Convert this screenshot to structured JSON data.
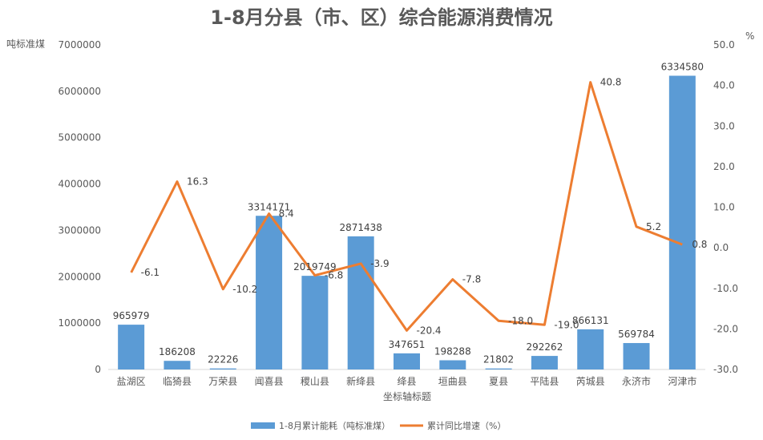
{
  "chart_data": {
    "type": "bar",
    "title": "1-8月分县（市、区）综合能源消费情况",
    "xlabel": "坐标轴标题",
    "ylabel_left": "吨标准煤",
    "ylabel_right": "%",
    "ylim_left": [
      0,
      7000000
    ],
    "ylim_right": [
      -30,
      50
    ],
    "left_ticks": [
      "0",
      "1000000",
      "2000000",
      "3000000",
      "4000000",
      "5000000",
      "6000000",
      "7000000"
    ],
    "right_ticks": [
      "-30.0",
      "-20.0",
      "-10.0",
      "0.0",
      "10.0",
      "20.0",
      "30.0",
      "40.0",
      "50.0"
    ],
    "categories": [
      "盐湖区",
      "临猗县",
      "万荣县",
      "闻喜县",
      "稷山县",
      "新绛县",
      "绛县",
      "垣曲县",
      "夏县",
      "平陆县",
      "芮城县",
      "永济市",
      "河津市"
    ],
    "series": [
      {
        "name": "1-8月累计能耗（吨标准煤）",
        "type": "bar",
        "axis": "left",
        "color": "#5B9BD5",
        "values": [
          965979,
          186208,
          22226,
          3314171,
          2019749,
          2871438,
          347651,
          198288,
          21802,
          292262,
          866131,
          569784,
          6334580
        ],
        "labels": [
          "965979",
          "186208",
          "22226",
          "3314171",
          "2019749",
          "2871438",
          "347651",
          "198288",
          "21802",
          "292262",
          "866131",
          "569784",
          "6334580"
        ]
      },
      {
        "name": "累计同比增速（%）",
        "type": "line",
        "axis": "right",
        "color": "#ED7D31",
        "values": [
          -6.1,
          16.3,
          -10.2,
          8.4,
          -6.8,
          -3.9,
          -20.4,
          -7.8,
          -18.0,
          -19.0,
          40.8,
          5.2,
          0.8
        ],
        "labels": [
          "-6.1",
          "16.3",
          "-10.2",
          "8.4",
          "-6.8",
          "-3.9",
          "-20.4",
          "-7.8",
          "-18.0",
          "-19.0",
          "40.8",
          "5.2",
          "0.8"
        ]
      }
    ],
    "legend_position": "bottom",
    "grid": false
  }
}
